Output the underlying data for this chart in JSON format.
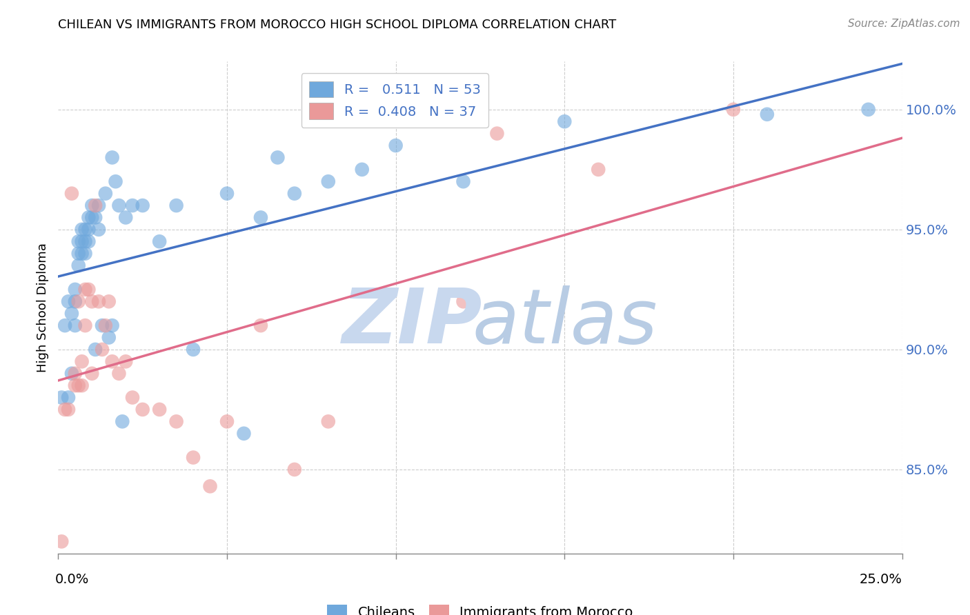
{
  "title": "CHILEAN VS IMMIGRANTS FROM MOROCCO HIGH SCHOOL DIPLOMA CORRELATION CHART",
  "source": "Source: ZipAtlas.com",
  "ylabel": "High School Diploma",
  "ytick_labels": [
    "85.0%",
    "90.0%",
    "95.0%",
    "100.0%"
  ],
  "ytick_values": [
    0.85,
    0.9,
    0.95,
    1.0
  ],
  "xmin": 0.0,
  "xmax": 0.25,
  "ymin": 0.815,
  "ymax": 1.02,
  "r1": 0.511,
  "n1": 53,
  "r2": 0.408,
  "n2": 37,
  "color_blue": "#6fa8dc",
  "color_pink": "#ea9999",
  "color_line_blue": "#4472c4",
  "color_line_pink": "#e06c8a",
  "chileans_x": [
    0.001,
    0.002,
    0.003,
    0.003,
    0.004,
    0.004,
    0.005,
    0.005,
    0.005,
    0.006,
    0.006,
    0.006,
    0.007,
    0.007,
    0.007,
    0.008,
    0.008,
    0.008,
    0.009,
    0.009,
    0.009,
    0.01,
    0.01,
    0.011,
    0.011,
    0.012,
    0.012,
    0.013,
    0.014,
    0.015,
    0.016,
    0.016,
    0.017,
    0.018,
    0.019,
    0.02,
    0.022,
    0.025,
    0.03,
    0.035,
    0.04,
    0.05,
    0.055,
    0.06,
    0.065,
    0.07,
    0.08,
    0.09,
    0.1,
    0.12,
    0.15,
    0.21,
    0.24
  ],
  "chileans_y": [
    0.88,
    0.91,
    0.92,
    0.88,
    0.915,
    0.89,
    0.925,
    0.92,
    0.91,
    0.945,
    0.94,
    0.935,
    0.95,
    0.945,
    0.94,
    0.95,
    0.945,
    0.94,
    0.955,
    0.95,
    0.945,
    0.96,
    0.955,
    0.955,
    0.9,
    0.96,
    0.95,
    0.91,
    0.965,
    0.905,
    0.98,
    0.91,
    0.97,
    0.96,
    0.87,
    0.955,
    0.96,
    0.96,
    0.945,
    0.96,
    0.9,
    0.965,
    0.865,
    0.955,
    0.98,
    0.965,
    0.97,
    0.975,
    0.985,
    0.97,
    0.995,
    0.998,
    1.0
  ],
  "morocco_x": [
    0.001,
    0.002,
    0.003,
    0.004,
    0.005,
    0.005,
    0.006,
    0.006,
    0.007,
    0.007,
    0.008,
    0.008,
    0.009,
    0.01,
    0.01,
    0.011,
    0.012,
    0.013,
    0.014,
    0.015,
    0.016,
    0.018,
    0.02,
    0.022,
    0.025,
    0.03,
    0.035,
    0.04,
    0.045,
    0.05,
    0.06,
    0.07,
    0.08,
    0.12,
    0.13,
    0.16,
    0.2
  ],
  "morocco_y": [
    0.82,
    0.875,
    0.875,
    0.965,
    0.89,
    0.885,
    0.885,
    0.92,
    0.895,
    0.885,
    0.925,
    0.91,
    0.925,
    0.92,
    0.89,
    0.96,
    0.92,
    0.9,
    0.91,
    0.92,
    0.895,
    0.89,
    0.895,
    0.88,
    0.875,
    0.875,
    0.87,
    0.855,
    0.843,
    0.87,
    0.91,
    0.85,
    0.87,
    0.92,
    0.99,
    0.975,
    1.0
  ]
}
